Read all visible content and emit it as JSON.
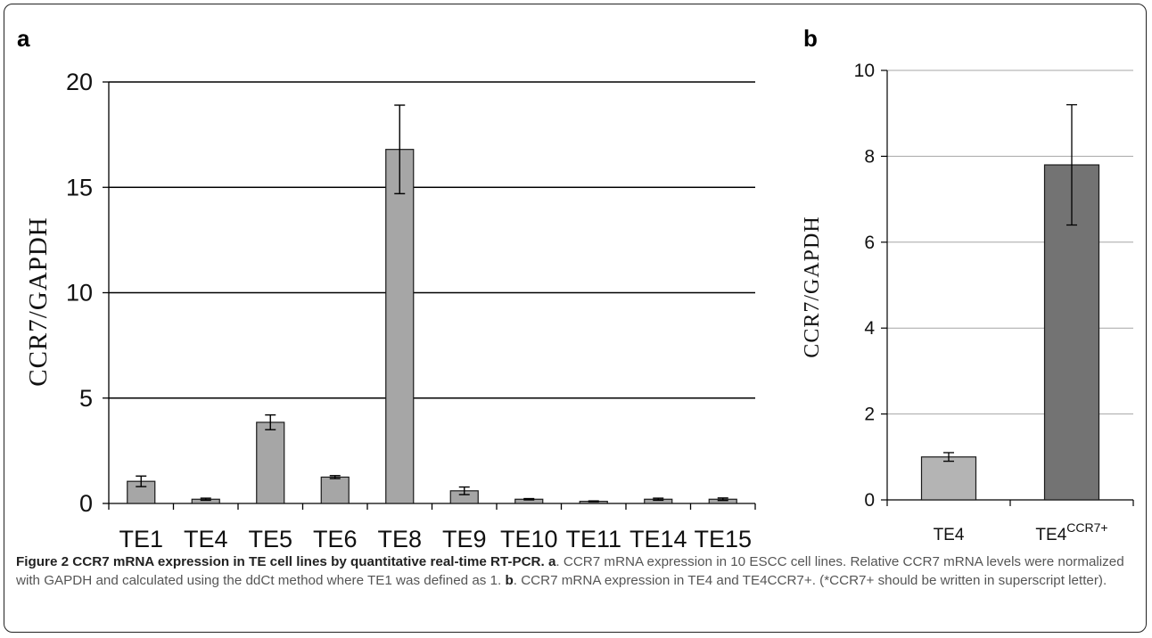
{
  "colors": {
    "bar_a": "#a6a6a6",
    "bar_b_light": "#b4b4b4",
    "bar_b_dark": "#737373",
    "gridline_a": "#000000",
    "gridline_b": "#a6a6a6",
    "caption_text": "#555555"
  },
  "chart_data": [
    {
      "panel": "a",
      "type": "bar",
      "ylabel": "CCR7/GAPDH",
      "xlabel": "",
      "ylim": [
        0,
        20
      ],
      "yticks": [
        0,
        5,
        10,
        15,
        20
      ],
      "grid": true,
      "categories": [
        "TE1",
        "TE4",
        "TE5",
        "TE6",
        "TE8",
        "TE9",
        "TE10",
        "TE11",
        "TE14",
        "TE15"
      ],
      "values": [
        1.05,
        0.2,
        3.85,
        1.25,
        16.8,
        0.6,
        0.2,
        0.1,
        0.2,
        0.2
      ],
      "errors": [
        0.25,
        0.05,
        0.35,
        0.07,
        2.1,
        0.18,
        0.03,
        0.02,
        0.05,
        0.06
      ]
    },
    {
      "panel": "b",
      "type": "bar",
      "ylabel": "CCR7/GAPDH",
      "xlabel": "",
      "ylim": [
        0,
        10
      ],
      "yticks": [
        0,
        2,
        4,
        6,
        8,
        10
      ],
      "grid": true,
      "categories": [
        "TE4",
        "TE4"
      ],
      "category_superscripts": [
        "",
        "CCR7+"
      ],
      "values": [
        1.0,
        7.8
      ],
      "errors": [
        0.1,
        1.4
      ]
    }
  ],
  "caption": {
    "title": "Figure 2 CCR7 mRNA expression in TE cell lines by quantitative real-time RT-PCR.",
    "a_letter": "a",
    "a_text": ". CCR7 mRNA expression in 10 ESCC cell lines. Relative CCR7 mRNA levels were normalized with GAPDH and calculated using the ddCt method where TE1 was defined as 1.",
    "b_letter": "b",
    "b_text": ". CCR7 mRNA expression in TE4 and TE4CCR7+. (*CCR7+ should be written in superscript letter)."
  }
}
